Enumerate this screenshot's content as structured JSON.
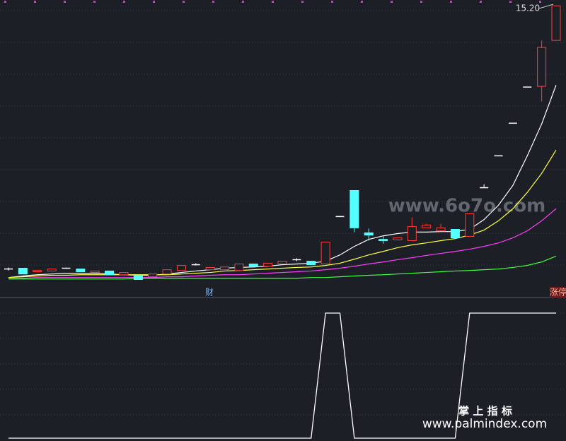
{
  "chart_data": {
    "type": "candlestick",
    "open": [
      4.71,
      4.74,
      4.6,
      4.63,
      4.74,
      4.71,
      4.57,
      4.63,
      4.48,
      4.46,
      4.4,
      4.51,
      4.65,
      4.88,
      4.68,
      4.68,
      4.65,
      4.91,
      4.82,
      4.91,
      5.08,
      5.02,
      4.91,
      6.8,
      7.84,
      6.15,
      5.89,
      5.87,
      5.84,
      6.35,
      6.23,
      6.29,
      6.01,
      7.95,
      9.22,
      10.52,
      11.96,
      11.99,
      13.82
    ],
    "high": [
      4.77,
      4.74,
      4.65,
      4.71,
      4.77,
      4.71,
      4.63,
      4.63,
      4.57,
      4.46,
      4.51,
      4.68,
      4.85,
      4.94,
      4.77,
      4.79,
      4.91,
      4.91,
      4.94,
      5.02,
      5.14,
      5.02,
      5.78,
      6.8,
      7.84,
      6.32,
      6.03,
      5.95,
      6.77,
      6.51,
      6.51,
      6.29,
      6.91,
      8.09,
      9.22,
      10.52,
      11.96,
      13.82,
      15.2
    ],
    "low": [
      4.65,
      4.51,
      4.57,
      4.63,
      4.71,
      4.6,
      4.57,
      4.48,
      4.48,
      4.29,
      4.4,
      4.51,
      4.65,
      4.85,
      4.68,
      4.68,
      4.65,
      4.82,
      4.82,
      4.91,
      5.02,
      4.88,
      4.91,
      6.8,
      6.18,
      5.84,
      5.72,
      5.87,
      5.84,
      6.35,
      6.23,
      5.95,
      6.01,
      7.95,
      9.22,
      10.52,
      11.96,
      11.39,
      13.82
    ],
    "close": [
      4.71,
      4.51,
      4.65,
      4.71,
      4.74,
      4.6,
      4.63,
      4.48,
      4.57,
      4.29,
      4.51,
      4.68,
      4.85,
      4.88,
      4.77,
      4.79,
      4.91,
      4.82,
      4.94,
      5.02,
      5.08,
      4.88,
      5.78,
      6.8,
      6.35,
      6.06,
      5.84,
      5.95,
      6.4,
      6.46,
      6.35,
      5.95,
      6.91,
      7.95,
      9.22,
      10.52,
      11.96,
      13.54,
      15.2
    ],
    "up_color": "#ff3c3c",
    "down_color": "#54ffff",
    "flat_color": "#ffffff",
    "ylim": [
      3.6,
      15.43
    ],
    "ma_lines": [
      {
        "color": "#ffffff",
        "values": [
          4.37,
          4.43,
          4.48,
          4.51,
          4.54,
          4.54,
          4.54,
          4.51,
          4.48,
          4.46,
          4.46,
          4.51,
          4.57,
          4.63,
          4.68,
          4.74,
          4.77,
          4.79,
          4.82,
          4.88,
          4.91,
          4.94,
          5.02,
          5.27,
          5.61,
          5.89,
          6.03,
          6.12,
          6.18,
          6.18,
          6.2,
          6.2,
          6.29,
          6.68,
          7.25,
          8.04,
          9.22,
          10.49,
          12.04
        ]
      },
      {
        "color": "#ffff3c",
        "values": [
          4.37,
          4.4,
          4.43,
          4.46,
          4.46,
          4.48,
          4.48,
          4.48,
          4.48,
          4.48,
          4.48,
          4.48,
          4.51,
          4.54,
          4.57,
          4.63,
          4.65,
          4.68,
          4.71,
          4.74,
          4.77,
          4.79,
          4.85,
          4.94,
          5.1,
          5.27,
          5.41,
          5.56,
          5.67,
          5.75,
          5.84,
          5.92,
          6.06,
          6.26,
          6.63,
          7.11,
          7.76,
          8.52,
          9.45
        ]
      },
      {
        "color": "#ff3cff",
        "values": [
          4.34,
          4.34,
          4.37,
          4.37,
          4.37,
          4.37,
          4.37,
          4.37,
          4.37,
          4.37,
          4.37,
          4.4,
          4.4,
          4.43,
          4.46,
          4.48,
          4.48,
          4.51,
          4.54,
          4.57,
          4.6,
          4.63,
          4.68,
          4.74,
          4.82,
          4.91,
          4.99,
          5.08,
          5.16,
          5.25,
          5.33,
          5.41,
          5.5,
          5.61,
          5.75,
          5.95,
          6.23,
          6.63,
          7.11
        ]
      },
      {
        "color": "#3cff3c",
        "values": [
          4.31,
          4.31,
          4.31,
          4.31,
          4.31,
          4.31,
          4.31,
          4.31,
          4.31,
          4.34,
          4.34,
          4.34,
          4.34,
          4.34,
          4.34,
          4.34,
          4.34,
          4.34,
          4.34,
          4.34,
          4.34,
          4.37,
          4.37,
          4.4,
          4.43,
          4.46,
          4.48,
          4.51,
          4.54,
          4.57,
          4.6,
          4.63,
          4.65,
          4.68,
          4.71,
          4.77,
          4.85,
          4.99,
          5.22
        ]
      }
    ],
    "annotation": "15.20",
    "markers": [
      "财",
      "涨停"
    ],
    "indicator": {
      "type": "line",
      "color": "#ffffff",
      "ylim": [
        0,
        1
      ],
      "values": [
        0,
        0,
        0,
        0,
        0,
        0,
        0,
        0,
        0,
        0,
        0,
        0,
        0,
        0,
        0,
        0,
        0,
        0,
        0,
        0,
        0,
        0,
        1,
        1,
        0,
        0,
        0,
        0,
        0,
        0,
        0,
        0,
        1,
        1,
        1,
        1,
        1,
        1,
        1
      ]
    }
  },
  "watermarks": [
    "www.6o7o.com",
    "掌 上 指 标",
    "www.palmindex.com"
  ]
}
